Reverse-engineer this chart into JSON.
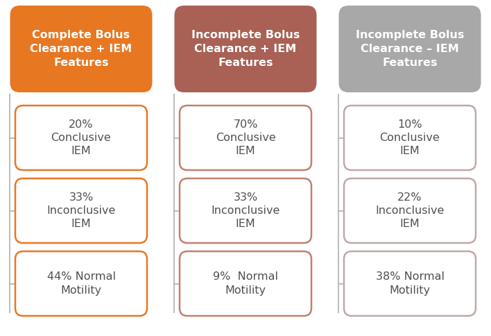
{
  "columns": [
    {
      "header": "Complete Bolus\nClearance + IEM\nFeatures",
      "header_color": "#E87722",
      "box_border_color": "#E87722",
      "items": [
        "20%\nConclusive\nIEM",
        "33%\nInconclusive\nIEM",
        "44% Normal\nMotility"
      ]
    },
    {
      "header": "Incomplete Bolus\nClearance + IEM\nFeatures",
      "header_color": "#A96055",
      "box_border_color": "#C08070",
      "items": [
        "70%\nConclusive\nIEM",
        "33%\nInconclusive\nIEM",
        "9%  Normal\nMotility"
      ]
    },
    {
      "header": "Incomplete Bolus\nClearance – IEM\nFeatures",
      "header_color": "#A8A8A8",
      "box_border_color": "#C0A8A8",
      "items": [
        "10%\nConclusive\nIEM",
        "22%\nInconclusive\nIEM",
        "38% Normal\nMotility"
      ]
    }
  ],
  "background_color": "#FFFFFF",
  "text_color_header": "#FFFFFF",
  "text_color_item": "#505050",
  "header_fontsize": 11.5,
  "item_fontsize": 11.5,
  "line_color": "#B0B0B0"
}
